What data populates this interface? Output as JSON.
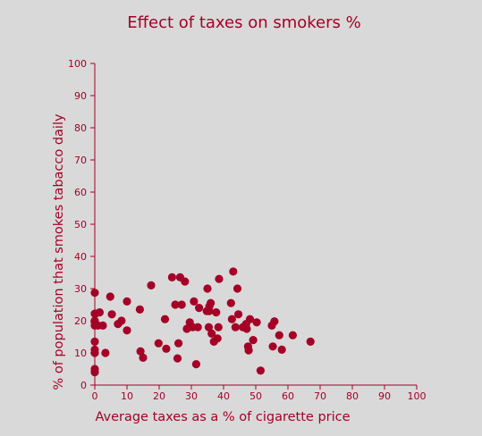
{
  "colors": {
    "background": "#d9d9d9",
    "accent": "#a50026"
  },
  "chart_data": {
    "type": "scatter",
    "title": "Effect of taxes on smokers %",
    "xlabel": "Average taxes as a % of cigarette price",
    "ylabel": "% of population that smokes tabacco daily",
    "xlim": [
      0,
      100
    ],
    "ylim": [
      0,
      100
    ],
    "xticks": [
      0,
      10,
      20,
      30,
      40,
      50,
      60,
      70,
      80,
      90,
      100
    ],
    "yticks": [
      0,
      10,
      20,
      30,
      40,
      50,
      60,
      70,
      80,
      90,
      100
    ],
    "grid": false,
    "series": [
      {
        "x": [
          0,
          0,
          0,
          0,
          0,
          0,
          0,
          0,
          0,
          0,
          0.2,
          1,
          1.5,
          2.5,
          3.3,
          4.8,
          5.3,
          7.2,
          8.3,
          10,
          10,
          14,
          14.2,
          15,
          17.5,
          19.8,
          21.8,
          22.2,
          24,
          25,
          25.7,
          26,
          26.5,
          27,
          28,
          28.6,
          29.5,
          30.4,
          30.8,
          31.5,
          32,
          32.4,
          34.8,
          35,
          35.4,
          35.5,
          35.6,
          36,
          36.3,
          37,
          37.7,
          38.1,
          38.4,
          38.6,
          42.3,
          42.6,
          43,
          43.7,
          44.3,
          44.6,
          46,
          47,
          47.2,
          47.6,
          47.8,
          48.2,
          49.2,
          50.3,
          51.5,
          55,
          55.3,
          55.8,
          57.3,
          58.1,
          61.5,
          67
        ],
        "y": [
          4,
          5,
          10,
          11,
          13.5,
          18.5,
          19.5,
          20,
          28.7,
          22.2,
          22.2,
          18.5,
          22.6,
          18.5,
          10,
          27.5,
          22,
          19,
          20,
          17,
          26,
          23.5,
          10.5,
          8.5,
          31,
          13,
          20.5,
          11.3,
          33.5,
          25,
          8.3,
          13,
          33.5,
          25,
          32.2,
          17.5,
          19.5,
          18,
          26,
          6.5,
          18,
          24,
          23,
          30,
          18,
          23,
          24.5,
          25.5,
          16,
          13.5,
          22.6,
          14.5,
          18,
          33,
          25.5,
          20.5,
          35.3,
          18,
          30,
          22,
          18,
          19,
          17.5,
          12,
          10.8,
          20.5,
          14,
          19.5,
          4.5,
          18.5,
          12,
          19.8,
          15.5,
          11,
          15.5,
          13.5
        ]
      }
    ]
  }
}
